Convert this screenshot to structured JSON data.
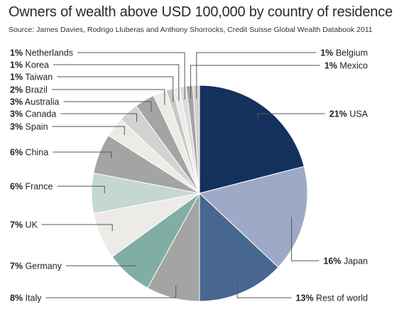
{
  "chart_data": {
    "type": "pie",
    "title": "Owners of wealth above USD 100,000 by country of residence",
    "subtitle": "Source: James Davies, Rodrigo Lluberas and Anthony Shorrocks, Credit Suisse Global Wealth Databook 2011",
    "start_angle": "12 o'clock",
    "direction": "clockwise",
    "slices": [
      {
        "label": "USA",
        "value": 21,
        "value_label": "21%",
        "color": "#14315e"
      },
      {
        "label": "Japan",
        "value": 16,
        "value_label": "16%",
        "color": "#9ea9c7"
      },
      {
        "label": "Rest of world",
        "value": 13,
        "value_label": "13%",
        "color": "#476790"
      },
      {
        "label": "Italy",
        "value": 8,
        "value_label": "8%",
        "color": "#a4a4a2"
      },
      {
        "label": "Germany",
        "value": 7,
        "value_label": "7%",
        "color": "#80ada4"
      },
      {
        "label": "UK",
        "value": 7,
        "value_label": "7%",
        "color": "#ecebe8"
      },
      {
        "label": "France",
        "value": 6,
        "value_label": "6%",
        "color": "#c4d7d3"
      },
      {
        "label": "China",
        "value": 6,
        "value_label": "6%",
        "color": "#a4a4a2"
      },
      {
        "label": "Spain",
        "value": 3,
        "value_label": "3%",
        "color": "#ecebe8"
      },
      {
        "label": "Canada",
        "value": 3,
        "value_label": "3%",
        "color": "#d2d2d0"
      },
      {
        "label": "Australia",
        "value": 3,
        "value_label": "3%",
        "color": "#a4a4a2"
      },
      {
        "label": "Brazil",
        "value": 2,
        "value_label": "2%",
        "color": "#ecebe8"
      },
      {
        "label": "Taiwan",
        "value": 1,
        "value_label": "1%",
        "color": "#c8c8c6"
      },
      {
        "label": "Korea",
        "value": 1,
        "value_label": "1%",
        "color": "#ecebe8"
      },
      {
        "label": "Netherlands",
        "value": 1,
        "value_label": "1%",
        "color": "#dcdcda"
      },
      {
        "label": "Mexico",
        "value": 1,
        "value_label": "1%",
        "color": "#a4a4a2"
      },
      {
        "label": "Belgium",
        "value": 1,
        "value_label": "1%",
        "color": "#d2d2d0"
      }
    ]
  }
}
